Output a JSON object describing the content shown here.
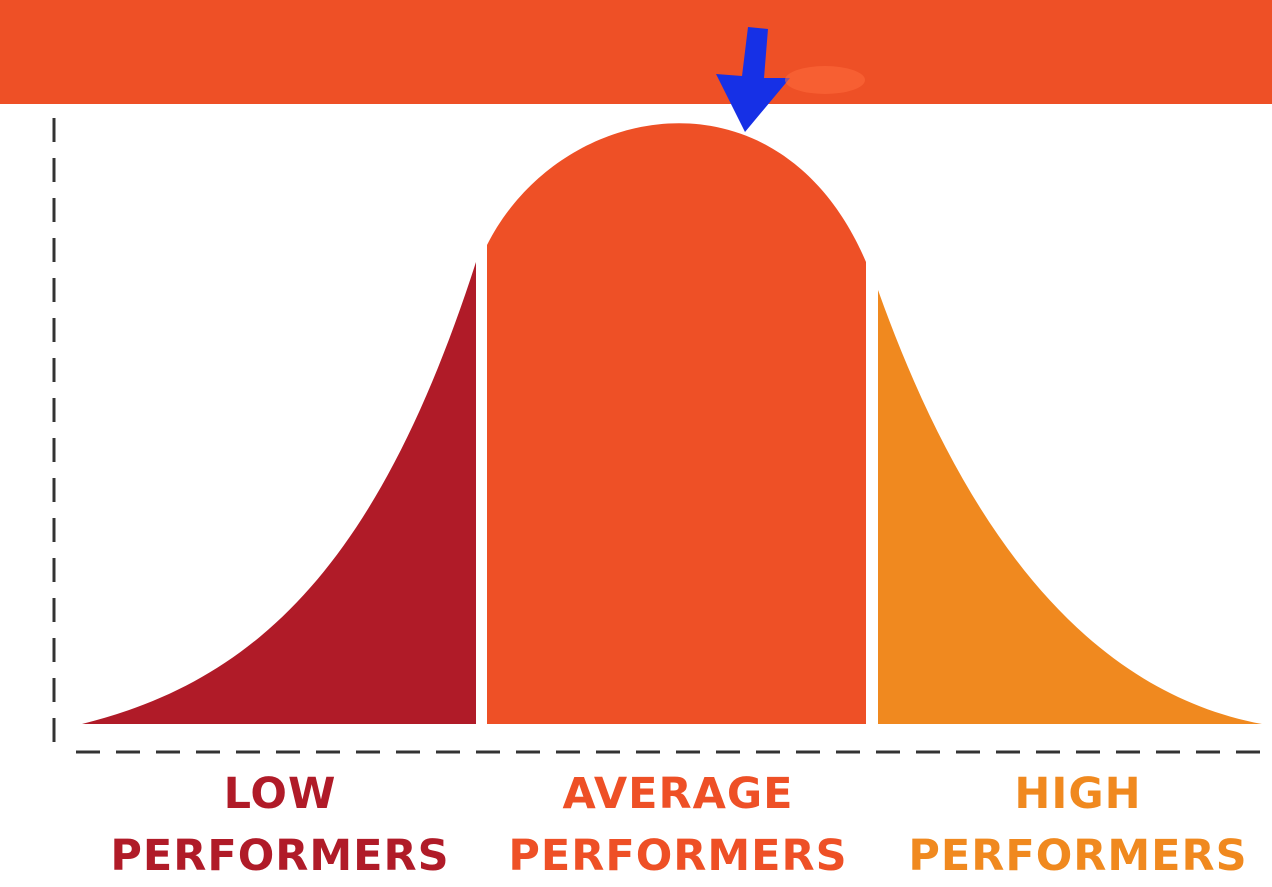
{
  "colors": {
    "banner": "#ee5026",
    "low": "#b01b28",
    "average": "#ee5026",
    "high": "#f0891f",
    "arrow": "#1630e6",
    "axis": "#333333"
  },
  "segments": {
    "low": {
      "line1": "LOW",
      "line2": "PERFORMERS"
    },
    "average": {
      "line1": "AVERAGE",
      "line2": "PERFORMERS"
    },
    "high": {
      "line1": "HIGH",
      "line2": "PERFORMERS"
    }
  },
  "pointer": {
    "icon": "down-arrow-icon",
    "target": "curve-peak"
  }
}
